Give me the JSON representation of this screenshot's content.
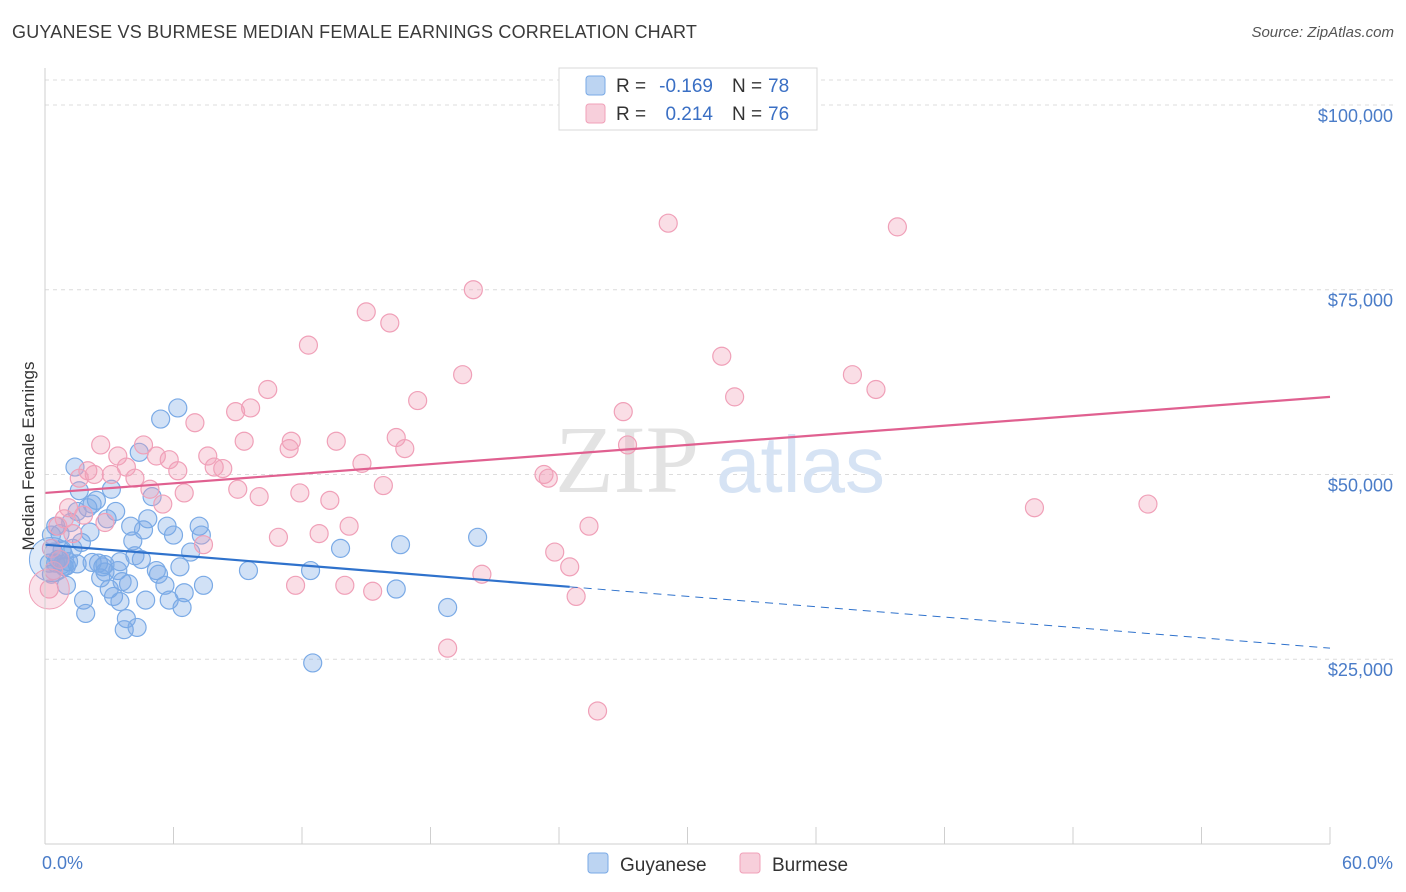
{
  "header": {
    "title": "GUYANESE VS BURMESE MEDIAN FEMALE EARNINGS CORRELATION CHART",
    "source": "Source: ZipAtlas.com"
  },
  "watermark": {
    "zip": "ZIP",
    "atlas": "atlas"
  },
  "chart_data": {
    "type": "scatter",
    "title": "GUYANESE VS BURMESE MEDIAN FEMALE EARNINGS CORRELATION CHART",
    "ylabel": "Median Female Earnings",
    "xlim": [
      0,
      60
    ],
    "ylim": [
      0,
      105000
    ],
    "x_tick_labels": [
      "0.0%",
      "60.0%"
    ],
    "y_ticks": [
      {
        "value": 25000,
        "label": "$25,000"
      },
      {
        "value": 50000,
        "label": "$50,000"
      },
      {
        "value": 75000,
        "label": "$75,000"
      },
      {
        "value": 100000,
        "label": "$100,000"
      }
    ],
    "grid": true,
    "legend_position": "top-center",
    "series": [
      {
        "name": "Guyanese",
        "color": "#7aaae6",
        "line_color": "#2f72cc",
        "R": "-0.169",
        "N": "78",
        "trend": {
          "x0": 0,
          "y0": 40500,
          "x1": 24.5,
          "y1": 34800,
          "x_dash_end": 60,
          "y_dash_end": 26500
        },
        "points": [
          [
            0.3,
            41800
          ],
          [
            0.4,
            39500
          ],
          [
            0.5,
            43000
          ],
          [
            0.6,
            38500
          ],
          [
            0.7,
            42000
          ],
          [
            0.8,
            37800
          ],
          [
            0.9,
            37500
          ],
          [
            1.0,
            35000
          ],
          [
            1.1,
            38200
          ],
          [
            1.2,
            43500
          ],
          [
            1.3,
            40000
          ],
          [
            1.4,
            51000
          ],
          [
            1.5,
            45000
          ],
          [
            1.6,
            47800
          ],
          [
            1.7,
            40800
          ],
          [
            1.8,
            33000
          ],
          [
            1.9,
            31200
          ],
          [
            2.0,
            45500
          ],
          [
            2.1,
            42200
          ],
          [
            2.2,
            46000
          ],
          [
            2.4,
            46500
          ],
          [
            2.5,
            38000
          ],
          [
            2.6,
            36000
          ],
          [
            2.7,
            37500
          ],
          [
            2.8,
            36800
          ],
          [
            2.9,
            44000
          ],
          [
            3.0,
            34500
          ],
          [
            3.1,
            48000
          ],
          [
            3.2,
            33500
          ],
          [
            3.3,
            45000
          ],
          [
            3.4,
            37000
          ],
          [
            3.5,
            32800
          ],
          [
            3.6,
            35500
          ],
          [
            3.7,
            29000
          ],
          [
            3.8,
            30500
          ],
          [
            3.9,
            35200
          ],
          [
            4.0,
            43000
          ],
          [
            4.1,
            41000
          ],
          [
            4.2,
            39000
          ],
          [
            4.3,
            29300
          ],
          [
            4.4,
            53000
          ],
          [
            4.5,
            38500
          ],
          [
            4.6,
            42500
          ],
          [
            4.7,
            33000
          ],
          [
            4.8,
            44000
          ],
          [
            5.0,
            47000
          ],
          [
            5.2,
            37000
          ],
          [
            5.3,
            36500
          ],
          [
            5.4,
            57500
          ],
          [
            5.6,
            35000
          ],
          [
            5.7,
            43000
          ],
          [
            5.8,
            33000
          ],
          [
            6.0,
            41800
          ],
          [
            6.2,
            59000
          ],
          [
            6.3,
            37500
          ],
          [
            6.4,
            32000
          ],
          [
            6.5,
            34000
          ],
          [
            6.8,
            39500
          ],
          [
            7.2,
            43000
          ],
          [
            7.3,
            41800
          ],
          [
            7.4,
            35000
          ],
          [
            9.5,
            37000
          ],
          [
            12.4,
            37000
          ],
          [
            12.5,
            24500
          ],
          [
            13.8,
            40000
          ],
          [
            16.4,
            34500
          ],
          [
            16.6,
            40500
          ],
          [
            18.8,
            32000
          ],
          [
            20.2,
            41500
          ],
          [
            0.2,
            38000
          ],
          [
            0.5,
            38000
          ],
          [
            1.0,
            37600
          ],
          [
            0.8,
            39800
          ],
          [
            0.3,
            36500
          ],
          [
            1.5,
            37900
          ],
          [
            2.2,
            38100
          ],
          [
            2.8,
            37800
          ],
          [
            3.5,
            38200
          ]
        ]
      },
      {
        "name": "Burmese",
        "color": "#f0a0b8",
        "line_color": "#e06090",
        "R": "0.214",
        "N": "76",
        "trend": {
          "x0": 0,
          "y0": 47500,
          "x1": 60,
          "y1": 60500
        },
        "points": [
          [
            0.4,
            37000
          ],
          [
            0.6,
            43000
          ],
          [
            0.9,
            44000
          ],
          [
            1.1,
            45500
          ],
          [
            1.3,
            42000
          ],
          [
            1.6,
            49500
          ],
          [
            1.8,
            44500
          ],
          [
            2.0,
            50500
          ],
          [
            2.3,
            50000
          ],
          [
            2.6,
            54000
          ],
          [
            2.8,
            43500
          ],
          [
            3.1,
            50000
          ],
          [
            3.4,
            52500
          ],
          [
            3.8,
            51000
          ],
          [
            4.2,
            49500
          ],
          [
            4.6,
            54000
          ],
          [
            4.9,
            48000
          ],
          [
            5.2,
            52500
          ],
          [
            5.5,
            46000
          ],
          [
            5.8,
            52000
          ],
          [
            6.2,
            50500
          ],
          [
            6.5,
            47500
          ],
          [
            7.0,
            57000
          ],
          [
            7.4,
            40500
          ],
          [
            7.6,
            52500
          ],
          [
            7.9,
            51000
          ],
          [
            8.3,
            50800
          ],
          [
            8.9,
            58500
          ],
          [
            9.0,
            48000
          ],
          [
            9.3,
            54500
          ],
          [
            9.6,
            59000
          ],
          [
            10.0,
            47000
          ],
          [
            10.4,
            61500
          ],
          [
            10.9,
            41500
          ],
          [
            11.4,
            53500
          ],
          [
            11.5,
            54500
          ],
          [
            11.7,
            35000
          ],
          [
            11.9,
            47500
          ],
          [
            12.3,
            67500
          ],
          [
            12.8,
            42000
          ],
          [
            13.3,
            46500
          ],
          [
            13.6,
            54500
          ],
          [
            14.0,
            35000
          ],
          [
            14.2,
            43000
          ],
          [
            14.8,
            51500
          ],
          [
            15.0,
            72000
          ],
          [
            15.3,
            34200
          ],
          [
            15.8,
            48500
          ],
          [
            16.1,
            70500
          ],
          [
            16.4,
            55000
          ],
          [
            16.8,
            53500
          ],
          [
            17.4,
            60000
          ],
          [
            18.8,
            26500
          ],
          [
            19.5,
            63500
          ],
          [
            20.0,
            75000
          ],
          [
            20.4,
            36500
          ],
          [
            23.3,
            50000
          ],
          [
            23.5,
            49500
          ],
          [
            23.8,
            39500
          ],
          [
            24.5,
            37500
          ],
          [
            24.8,
            33500
          ],
          [
            25.4,
            43000
          ],
          [
            25.8,
            18000
          ],
          [
            27.0,
            58500
          ],
          [
            27.2,
            54000
          ],
          [
            29.1,
            84000
          ],
          [
            31.6,
            66000
          ],
          [
            32.2,
            60500
          ],
          [
            37.7,
            63500
          ],
          [
            38.8,
            61500
          ],
          [
            39.8,
            83500
          ],
          [
            46.2,
            45500
          ],
          [
            51.5,
            46000
          ],
          [
            0.2,
            34500
          ],
          [
            0.7,
            38500
          ],
          [
            0.3,
            40000
          ]
        ]
      }
    ]
  }
}
